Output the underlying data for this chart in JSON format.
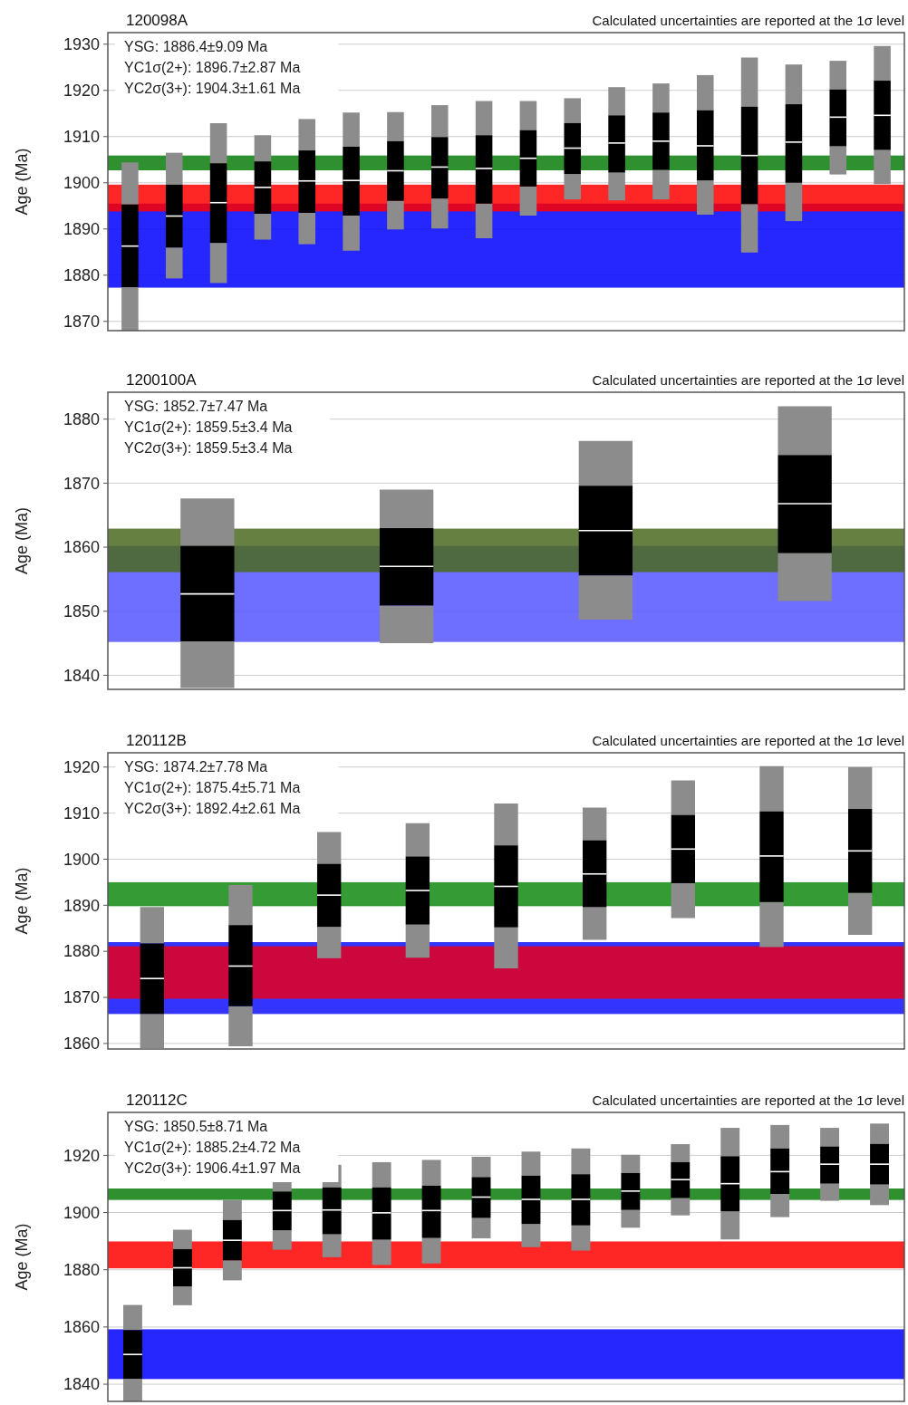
{
  "chart_data": [
    {
      "type": "box",
      "title": "120098A",
      "subtitle": "Calculated uncertainties are reported at the 1σ level",
      "ylabel": "Age (Ma)",
      "annotations": [
        "YSG: 1886.4±9.09 Ma",
        "YC1σ(2+): 1896.7±2.87 Ma",
        "YC2σ(3+): 1904.3±1.61 Ma"
      ],
      "categories": [
        null,
        null,
        null,
        null,
        null,
        null,
        null,
        null,
        null,
        null,
        null,
        null,
        null,
        null,
        null,
        null,
        null,
        null
      ],
      "ylim": [
        1868,
        1932.5
      ],
      "yticks": [
        1870,
        1880,
        1890,
        1900,
        1910,
        1920,
        1930
      ],
      "grid": "y",
      "bands": [
        {
          "axis": "y",
          "from": 1877.3,
          "to": 1895.5,
          "color": "#0000ff"
        },
        {
          "axis": "y",
          "from": 1893.8,
          "to": 1899.6,
          "color": "#ff0000"
        },
        {
          "axis": "y",
          "from": 1902.7,
          "to": 1905.9,
          "color": "#0a7d0a"
        }
      ],
      "series": [
        {
          "color": "#000000",
          "boxes": [
            {
              "low": 1868,
              "q1": 1877.4,
              "median": 1886.3,
              "q3": 1895.3,
              "high": 1904.4
            },
            {
              "low": 1879.3,
              "q1": 1886.0,
              "median": 1892.8,
              "q3": 1899.6,
              "high": 1906.5
            },
            {
              "low": 1878.3,
              "q1": 1887.0,
              "median": 1895.7,
              "q3": 1904.2,
              "high": 1912.9
            },
            {
              "low": 1887.7,
              "q1": 1893.3,
              "median": 1899.0,
              "q3": 1904.6,
              "high": 1910.3
            },
            {
              "low": 1886.7,
              "q1": 1893.5,
              "median": 1900.4,
              "q3": 1907.0,
              "high": 1913.8
            },
            {
              "low": 1885.3,
              "q1": 1892.9,
              "median": 1900.5,
              "q3": 1907.8,
              "high": 1915.2
            },
            {
              "low": 1889.9,
              "q1": 1896.1,
              "median": 1902.6,
              "q3": 1909.0,
              "high": 1915.3
            },
            {
              "low": 1890.1,
              "q1": 1896.6,
              "median": 1903.4,
              "q3": 1909.9,
              "high": 1916.8
            },
            {
              "low": 1888.0,
              "q1": 1895.5,
              "median": 1903.1,
              "q3": 1910.3,
              "high": 1917.7
            },
            {
              "low": 1892.9,
              "q1": 1899.2,
              "median": 1905.3,
              "q3": 1911.4,
              "high": 1917.7
            },
            {
              "low": 1896.4,
              "q1": 1901.9,
              "median": 1907.5,
              "q3": 1912.9,
              "high": 1918.3
            },
            {
              "low": 1896.2,
              "q1": 1902.2,
              "median": 1908.6,
              "q3": 1914.6,
              "high": 1920.7
            },
            {
              "low": 1896.4,
              "q1": 1902.8,
              "median": 1909.0,
              "q3": 1915.2,
              "high": 1921.5
            },
            {
              "low": 1893.1,
              "q1": 1900.5,
              "median": 1908.0,
              "q3": 1915.7,
              "high": 1923.3
            },
            {
              "low": 1884.9,
              "q1": 1895.4,
              "median": 1905.9,
              "q3": 1916.5,
              "high": 1927.1
            },
            {
              "low": 1891.7,
              "q1": 1900.0,
              "median": 1908.8,
              "q3": 1917.0,
              "high": 1925.6
            },
            {
              "low": 1901.8,
              "q1": 1907.9,
              "median": 1914.2,
              "q3": 1920.2,
              "high": 1926.4
            },
            {
              "low": 1899.7,
              "q1": 1907.1,
              "median": 1914.6,
              "q3": 1922.1,
              "high": 1929.6
            }
          ]
        }
      ]
    },
    {
      "type": "box",
      "title": "1200100A",
      "subtitle": "Calculated uncertainties are reported at the 1σ level",
      "ylabel": "Age (Ma)",
      "annotations": [
        "YSG: 1852.7±7.47 Ma",
        "YC1σ(2+): 1859.5±3.4 Ma",
        "YC2σ(3+): 1859.5±3.4 Ma"
      ],
      "categories": [
        null,
        null,
        null,
        null
      ],
      "ylim": [
        1837.8,
        1884.2
      ],
      "yticks": [
        1840,
        1850,
        1860,
        1870,
        1880
      ],
      "grid": "y",
      "bands": [
        {
          "axis": "y",
          "from": 1845.2,
          "to": 1860.2,
          "color": "#5555ff"
        },
        {
          "axis": "y",
          "from": 1856.1,
          "to": 1862.9,
          "color": "#4a6a1f"
        }
      ],
      "series": [
        {
          "color": "#000000",
          "boxes": [
            {
              "low": 1838,
              "q1": 1845.3,
              "median": 1852.7,
              "q3": 1860.2,
              "high": 1867.6
            },
            {
              "low": 1845.0,
              "q1": 1850.9,
              "median": 1857.0,
              "q3": 1863.0,
              "high": 1869.0
            },
            {
              "low": 1848.7,
              "q1": 1855.6,
              "median": 1862.6,
              "q3": 1869.6,
              "high": 1876.6
            },
            {
              "low": 1851.6,
              "q1": 1859.1,
              "median": 1866.8,
              "q3": 1874.4,
              "high": 1882.0
            }
          ]
        }
      ]
    },
    {
      "type": "box",
      "title": "120112B",
      "subtitle": "Calculated uncertainties are reported at the 1σ level",
      "ylabel": "Age (Ma)",
      "annotations": [
        "YSG: 1874.2±7.78 Ma",
        "YC1σ(2+): 1875.4±5.71 Ma",
        "YC2σ(3+): 1892.4±2.61 Ma"
      ],
      "categories": [
        null,
        null,
        null,
        null,
        null,
        null,
        null,
        null,
        null
      ],
      "ylim": [
        1858.8,
        1923.1
      ],
      "yticks": [
        1860,
        1870,
        1880,
        1890,
        1900,
        1910,
        1920
      ],
      "grid": "y",
      "bands": [
        {
          "axis": "y",
          "from": 1866.4,
          "to": 1882.0,
          "color": "#1010ff"
        },
        {
          "axis": "y",
          "from": 1869.7,
          "to": 1881.1,
          "color": "#e8001c"
        },
        {
          "axis": "y",
          "from": 1889.8,
          "to": 1895.0,
          "color": "#128a12"
        }
      ],
      "series": [
        {
          "color": "#000000",
          "boxes": [
            {
              "low": 1859,
              "q1": 1866.4,
              "median": 1874.1,
              "q3": 1881.7,
              "high": 1889.6
            },
            {
              "low": 1859.4,
              "q1": 1868.1,
              "median": 1876.8,
              "q3": 1885.7,
              "high": 1894.4
            },
            {
              "low": 1878.5,
              "q1": 1885.3,
              "median": 1892.2,
              "q3": 1899.0,
              "high": 1905.9
            },
            {
              "low": 1878.6,
              "q1": 1885.8,
              "median": 1893.2,
              "q3": 1900.6,
              "high": 1907.8
            },
            {
              "low": 1876.3,
              "q1": 1885.2,
              "median": 1894.1,
              "q3": 1903.0,
              "high": 1912.1
            },
            {
              "low": 1882.5,
              "q1": 1889.6,
              "median": 1896.8,
              "q3": 1904.1,
              "high": 1911.2
            },
            {
              "low": 1887.2,
              "q1": 1894.8,
              "median": 1902.2,
              "q3": 1909.6,
              "high": 1917.1
            },
            {
              "low": 1880.9,
              "q1": 1890.7,
              "median": 1900.7,
              "q3": 1910.4,
              "high": 1920.2
            },
            {
              "low": 1883.6,
              "q1": 1892.7,
              "median": 1901.8,
              "q3": 1910.9,
              "high": 1920.0
            }
          ]
        }
      ]
    },
    {
      "type": "box",
      "title": "120112C",
      "subtitle": "Calculated uncertainties are reported at the 1σ level",
      "ylabel": "Age (Ma)",
      "annotations": [
        "YSG: 1850.5±8.71 Ma",
        "YC1σ(2+): 1885.2±4.72 Ma",
        "YC2σ(3+): 1906.4±1.97 Ma"
      ],
      "categories": [
        null,
        null,
        null,
        null,
        null,
        null,
        null,
        null,
        null,
        null,
        null,
        null,
        null,
        null,
        null,
        null
      ],
      "ylim": [
        1834,
        1935
      ],
      "yticks": [
        1840,
        1860,
        1880,
        1900,
        1920
      ],
      "grid": "y",
      "bands": [
        {
          "axis": "y",
          "from": 1841.8,
          "to": 1859.2,
          "color": "#0000ff"
        },
        {
          "axis": "y",
          "from": 1880.5,
          "to": 1889.9,
          "color": "#ff0000"
        },
        {
          "axis": "y",
          "from": 1904.4,
          "to": 1908.4,
          "color": "#0a7d0a"
        }
      ],
      "series": [
        {
          "color": "#000000",
          "boxes": [
            {
              "low": 1834,
              "q1": 1841.9,
              "median": 1850.4,
              "q3": 1858.9,
              "high": 1867.7
            },
            {
              "low": 1867.6,
              "q1": 1874.2,
              "median": 1880.7,
              "q3": 1887.2,
              "high": 1894.0
            },
            {
              "low": 1876.3,
              "q1": 1883.3,
              "median": 1890.3,
              "q3": 1897.4,
              "high": 1904.4
            },
            {
              "low": 1887.0,
              "q1": 1893.8,
              "median": 1900.7,
              "q3": 1907.3,
              "high": 1914.0
            },
            {
              "low": 1884.4,
              "q1": 1892.4,
              "median": 1900.9,
              "q3": 1908.8,
              "high": 1916.7
            },
            {
              "low": 1881.7,
              "q1": 1890.5,
              "median": 1899.9,
              "q3": 1908.8,
              "high": 1917.6
            },
            {
              "low": 1882.2,
              "q1": 1891.1,
              "median": 1900.7,
              "q3": 1909.4,
              "high": 1918.4
            },
            {
              "low": 1891.0,
              "q1": 1898.1,
              "median": 1905.4,
              "q3": 1912.4,
              "high": 1919.5
            },
            {
              "low": 1887.9,
              "q1": 1896.0,
              "median": 1904.6,
              "q3": 1912.9,
              "high": 1921.3
            },
            {
              "low": 1886.7,
              "q1": 1895.5,
              "median": 1904.6,
              "q3": 1913.4,
              "high": 1922.4
            },
            {
              "low": 1894.7,
              "q1": 1900.9,
              "median": 1907.5,
              "q3": 1913.8,
              "high": 1920.2
            },
            {
              "low": 1899.0,
              "q1": 1905.1,
              "median": 1911.5,
              "q3": 1917.6,
              "high": 1923.9
            },
            {
              "low": 1890.6,
              "q1": 1900.4,
              "median": 1910.1,
              "q3": 1919.7,
              "high": 1929.6
            },
            {
              "low": 1898.4,
              "q1": 1906.5,
              "median": 1914.3,
              "q3": 1922.4,
              "high": 1930.6
            },
            {
              "low": 1904.1,
              "q1": 1910.1,
              "median": 1916.9,
              "q3": 1923.1,
              "high": 1929.6
            },
            {
              "low": 1902.6,
              "q1": 1909.8,
              "median": 1916.9,
              "q3": 1924.0,
              "high": 1931.1
            }
          ]
        }
      ]
    }
  ]
}
